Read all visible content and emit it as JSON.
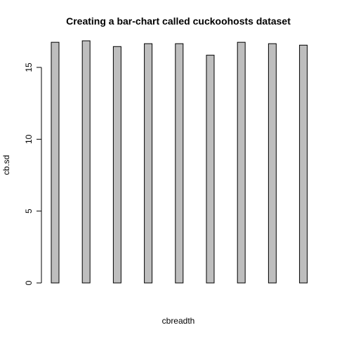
{
  "chart_data": {
    "type": "bar",
    "title": "Creating a bar-chart called cuckoohosts dataset",
    "xlabel": "cbreadth",
    "ylabel": "cb.sd",
    "categories": [
      "",
      "",
      "",
      "",
      "",
      "",
      "",
      "",
      ""
    ],
    "values": [
      16.75,
      16.85,
      16.45,
      16.65,
      16.65,
      15.85,
      16.75,
      16.65,
      16.55
    ],
    "ylim": [
      0,
      17
    ],
    "yticks": [
      0,
      5,
      10,
      15
    ],
    "colors": {
      "bar_fill": "#bebebe",
      "bar_stroke": "#000000"
    },
    "grid": false,
    "legend": "none"
  }
}
